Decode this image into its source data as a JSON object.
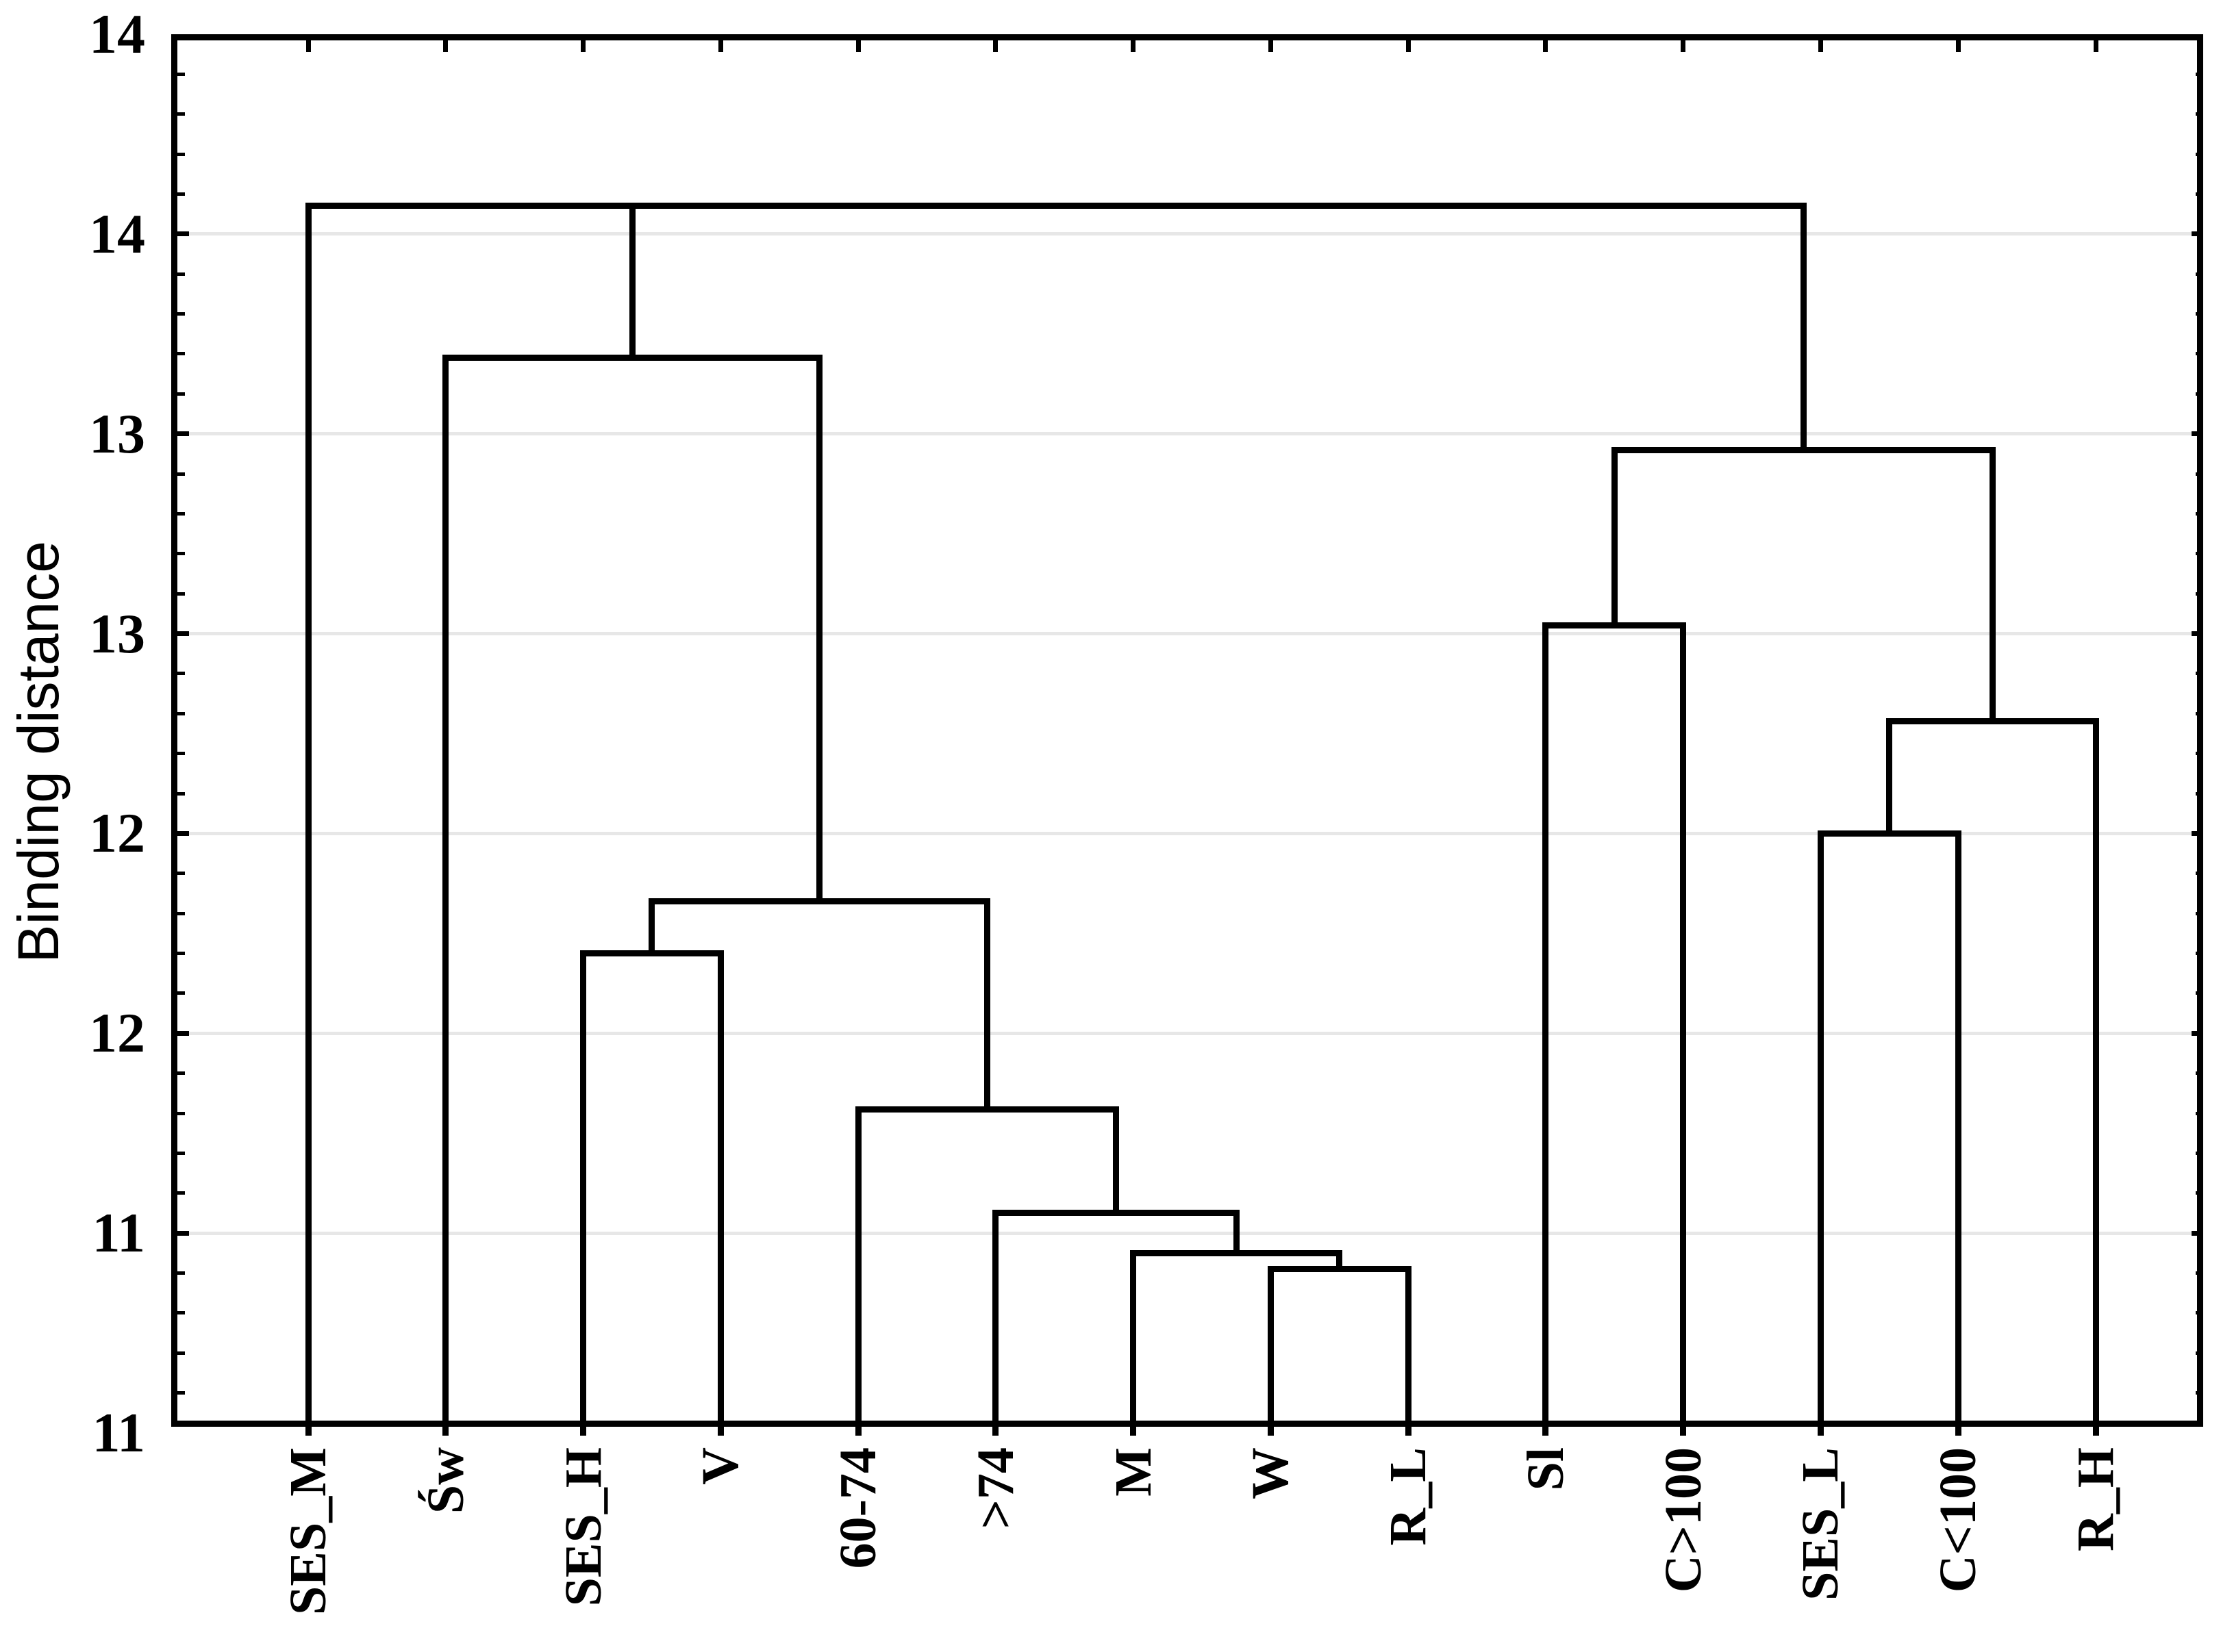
{
  "chart_data": {
    "type": "dendrogram",
    "title": "",
    "ylabel": "Binding distance",
    "y_axis": {
      "min": 11.0,
      "max": 14.5,
      "major_step": 0.5,
      "minor_step": 0.1,
      "tick_labels_top_to_bottom": [
        "14",
        "14",
        "13",
        "13",
        "12",
        "12",
        "11",
        "11"
      ],
      "grid": "on"
    },
    "x_axis": {
      "categories": [
        "SES_M",
        "Św",
        "SES_H",
        "V",
        "60-74",
        ">74",
        "M",
        "W",
        "R_L",
        "Sl",
        "C>100",
        "SES_L",
        "C<100",
        "R_H"
      ]
    },
    "merges": [
      {
        "id": "m1",
        "children": [
          "W",
          "R_L"
        ],
        "height": 11.41
      },
      {
        "id": "m2",
        "children": [
          "M",
          "m1"
        ],
        "height": 11.45
      },
      {
        "id": "m3",
        "children": [
          ">74",
          "m2"
        ],
        "height": 11.55
      },
      {
        "id": "m4",
        "children": [
          "60-74",
          "m3"
        ],
        "height": 11.81
      },
      {
        "id": "m5",
        "children": [
          "SES_H",
          "V"
        ],
        "height": 12.2
      },
      {
        "id": "m6",
        "children": [
          "m5",
          "m4"
        ],
        "height": 12.33
      },
      {
        "id": "m7",
        "children": [
          "Św",
          "m6"
        ],
        "height": 13.69
      },
      {
        "id": "m8",
        "children": [
          "Sl",
          "C>100"
        ],
        "height": 13.02
      },
      {
        "id": "m9",
        "children": [
          "SES_L",
          "C<100"
        ],
        "height": 12.5
      },
      {
        "id": "m10",
        "children": [
          "m9",
          "R_H"
        ],
        "height": 12.78
      },
      {
        "id": "m11",
        "children": [
          "m8",
          "m10"
        ],
        "height": 13.46
      },
      {
        "id": "root",
        "children": [
          "SES_M",
          "m7",
          "m11"
        ],
        "height": 14.07
      }
    ],
    "colors": {
      "line": "#000000",
      "grid": "#e7e7e7",
      "background": "#ffffff"
    }
  }
}
